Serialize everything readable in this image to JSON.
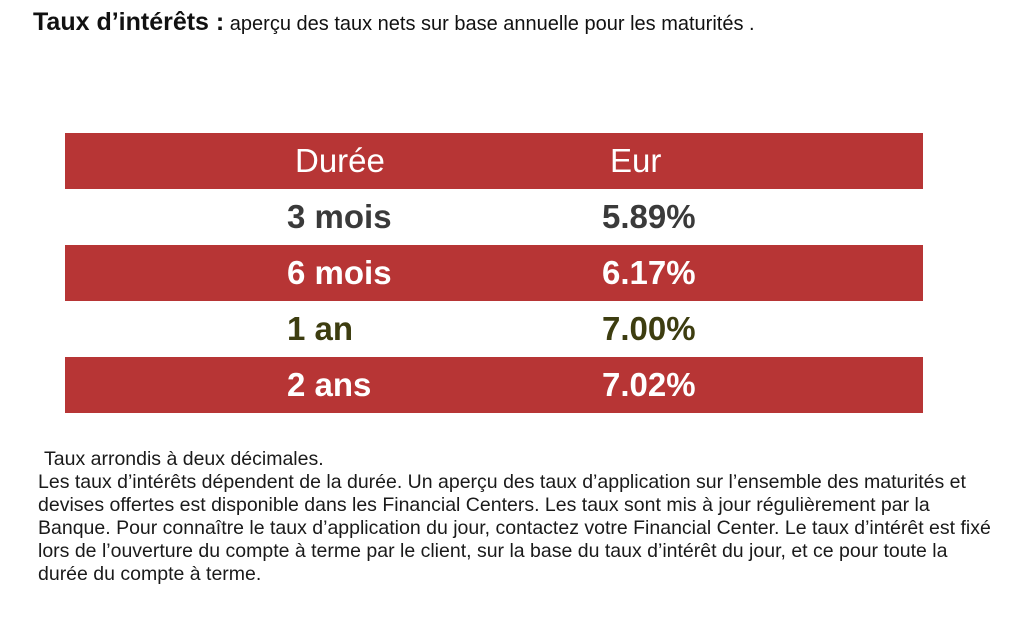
{
  "heading": {
    "title": "Taux d’intérêts :",
    "subtitle": " aperçu des taux nets sur base annuelle pour les maturités ."
  },
  "table": {
    "columns": [
      "Durée",
      "Eur"
    ],
    "rows": [
      {
        "duree": "3 mois",
        "eur": "5.89%"
      },
      {
        "duree": "6 mois",
        "eur": "6.17%"
      },
      {
        "duree": "1 an",
        "eur": "7.00%"
      },
      {
        "duree": "2 ans",
        "eur": "7.02%"
      }
    ],
    "colors": {
      "red_band": "#b73535",
      "text_dark": "#3a3a3a",
      "text_olive": "#3d3d10",
      "text_light": "#ffffff"
    }
  },
  "notes": {
    "rounding": "Taux arrondis à deux décimales.",
    "body": "Les taux d’intérêts dépendent de la durée. Un aperçu des taux d’application sur l’ensemble des maturités et devises offertes est disponible dans les Financial Centers. Les taux sont mis à jour régulièrement par la Banque. Pour connaître le taux d’application du jour, contactez votre Financial Center. Le taux d’intérêt est fixé lors de l’ouverture du compte à terme par le client, sur la base du taux d’intérêt du jour, et ce pour toute la durée du compte à terme."
  }
}
